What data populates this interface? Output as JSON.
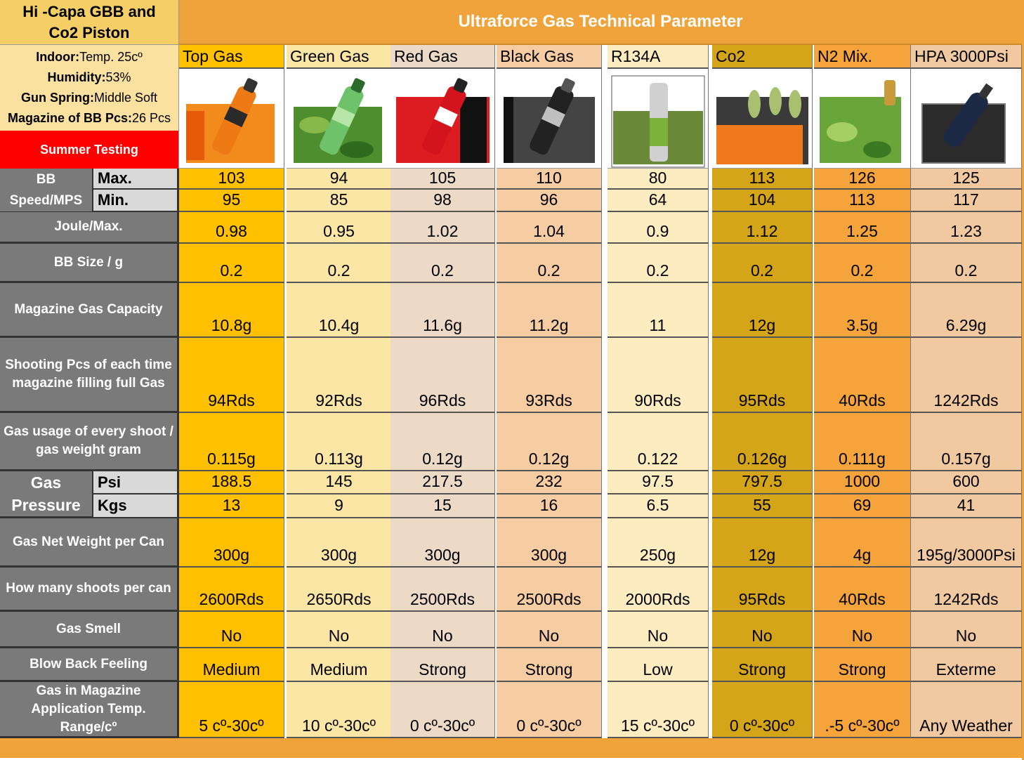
{
  "title_block": {
    "line1": "Hi -Capa GBB and",
    "line2": "Co2 Piston",
    "indoor_key": "Indoor:",
    "indoor_val": "Temp. 25cº",
    "humidity_key": "Humidity:",
    "humidity_val": "53%",
    "spring_key": "Gun Spring:",
    "spring_val": "Middle Soft",
    "magazine_key": "Magazine of BB Pcs:",
    "magazine_val": "26 Pcs",
    "summer": "Summer Testing"
  },
  "banner": "Ultraforce Gas Technical Parameter",
  "labels": {
    "bb_speed": "BB Speed/MPS",
    "max": "Max.",
    "min": "Min.",
    "joule": "Joule/Max.",
    "bb_size": "BB Size / g",
    "capacity": "Magazine Gas Capacity",
    "shooting_pcs": "Shooting Pcs of each time magazine filling full Gas",
    "gas_usage": "Gas usage of every shoot / gas weight gram",
    "gas_pressure": "Gas Pressure",
    "psi": "Psi",
    "kgs": "Kgs",
    "net_weight": "Gas Net Weight per Can",
    "shoots_per_can": "How many shoots per can",
    "smell": "Gas Smell",
    "blowback": "Blow Back Feeling",
    "temp_range": "Gas in Magazine Application Temp. Range/cº"
  },
  "colors": {
    "banner": "#f0a33a",
    "title": "#f5cf66",
    "info": "#fbe1a0",
    "summer": "#ff0000",
    "label": "#7a7a7a"
  },
  "products": [
    {
      "name": "Top Gas",
      "icon": "top-gas-can-icon",
      "color": "#ffc000",
      "max": "103",
      "min": "95",
      "joule": "0.98",
      "bb_size": "0.2",
      "capacity": "10.8g",
      "shooting_pcs": "94Rds",
      "usage": "0.115g",
      "psi": "188.5",
      "kgs": "13",
      "net_weight": "300g",
      "shoots_per_can": "2600Rds",
      "smell": "No",
      "blowback": "Medium",
      "temp_range": "5 cº-30cº"
    },
    {
      "name": "Green Gas",
      "icon": "green-gas-can-icon",
      "color": "#fce6a6",
      "max": "94",
      "min": "85",
      "joule": "0.95",
      "bb_size": "0.2",
      "capacity": "10.4g",
      "shooting_pcs": "92Rds",
      "usage": "0.113g",
      "psi": "145",
      "kgs": "9",
      "net_weight": "300g",
      "shoots_per_can": "2650Rds",
      "smell": "No",
      "blowback": "Medium",
      "temp_range": "10 cº-30cº"
    },
    {
      "name": "Red Gas",
      "icon": "red-gas-can-icon",
      "color": "#ecd9c6",
      "max": "105",
      "min": "98",
      "joule": "1.02",
      "bb_size": "0.2",
      "capacity": "11.6g",
      "shooting_pcs": "96Rds",
      "usage": "0.12g",
      "psi": "217.5",
      "kgs": "15",
      "net_weight": "300g",
      "shoots_per_can": "2500Rds",
      "smell": "No",
      "blowback": "Strong",
      "temp_range": "0 cº-30cº"
    },
    {
      "name": "Black Gas",
      "icon": "black-gas-can-icon",
      "color": "#f6cda2",
      "max": "110",
      "min": "96",
      "joule": "1.04",
      "bb_size": "0.2",
      "capacity": "11.2g",
      "shooting_pcs": "93Rds",
      "usage": "0.12g",
      "psi": "232",
      "kgs": "16",
      "net_weight": "300g",
      "shoots_per_can": "2500Rds",
      "smell": "No",
      "blowback": "Strong",
      "temp_range": "0 cº-30cº"
    },
    {
      "name": "R134A",
      "icon": "r134a-can-icon",
      "color": "#fdecc0",
      "max": "80",
      "min": "64",
      "joule": "0.9",
      "bb_size": "0.2",
      "capacity": "11",
      "shooting_pcs": "90Rds",
      "usage": "0.122",
      "psi": "97.5",
      "kgs": "6.5",
      "net_weight": "250g",
      "shoots_per_can": "2000Rds",
      "smell": "No",
      "blowback": "Low",
      "temp_range": "15 cº-30cº"
    },
    {
      "name": "Co2",
      "icon": "co2-cartridge-icon",
      "color": "#d4a419",
      "max": "113",
      "min": "104",
      "joule": "1.12",
      "bb_size": "0.2",
      "capacity": "12g",
      "shooting_pcs": "95Rds",
      "usage": "0.126g",
      "psi": "797.5",
      "kgs": "55",
      "net_weight": "12g",
      "shoots_per_can": "95Rds",
      "smell": "No",
      "blowback": "Strong",
      "temp_range": "0 cº-30cº"
    },
    {
      "name": "N2 Mix.",
      "icon": "n2-mix-can-icon",
      "color": "#f5a43b",
      "max": "126",
      "min": "113",
      "joule": "1.25",
      "bb_size": "0.2",
      "capacity": "3.5g",
      "shooting_pcs": "40Rds",
      "usage": "0.111g",
      "psi": "1000",
      "kgs": "69",
      "net_weight": "4g",
      "shoots_per_can": "40Rds",
      "smell": "No",
      "blowback": "Strong",
      "temp_range": ".-5 cº-30cº"
    },
    {
      "name": "HPA 3000Psi",
      "icon": "hpa-tank-icon",
      "color": "#f1c9a0",
      "max": "125",
      "min": "117",
      "joule": "1.23",
      "bb_size": "0.2",
      "capacity": "6.29g",
      "shooting_pcs": "1242Rds",
      "usage": "0.157g",
      "psi": "600",
      "kgs": "41",
      "net_weight": "195g/3000Psi",
      "shoots_per_can": "1242Rds",
      "smell": "No",
      "blowback": "Exterme",
      "temp_range": "Any Weather"
    }
  ]
}
